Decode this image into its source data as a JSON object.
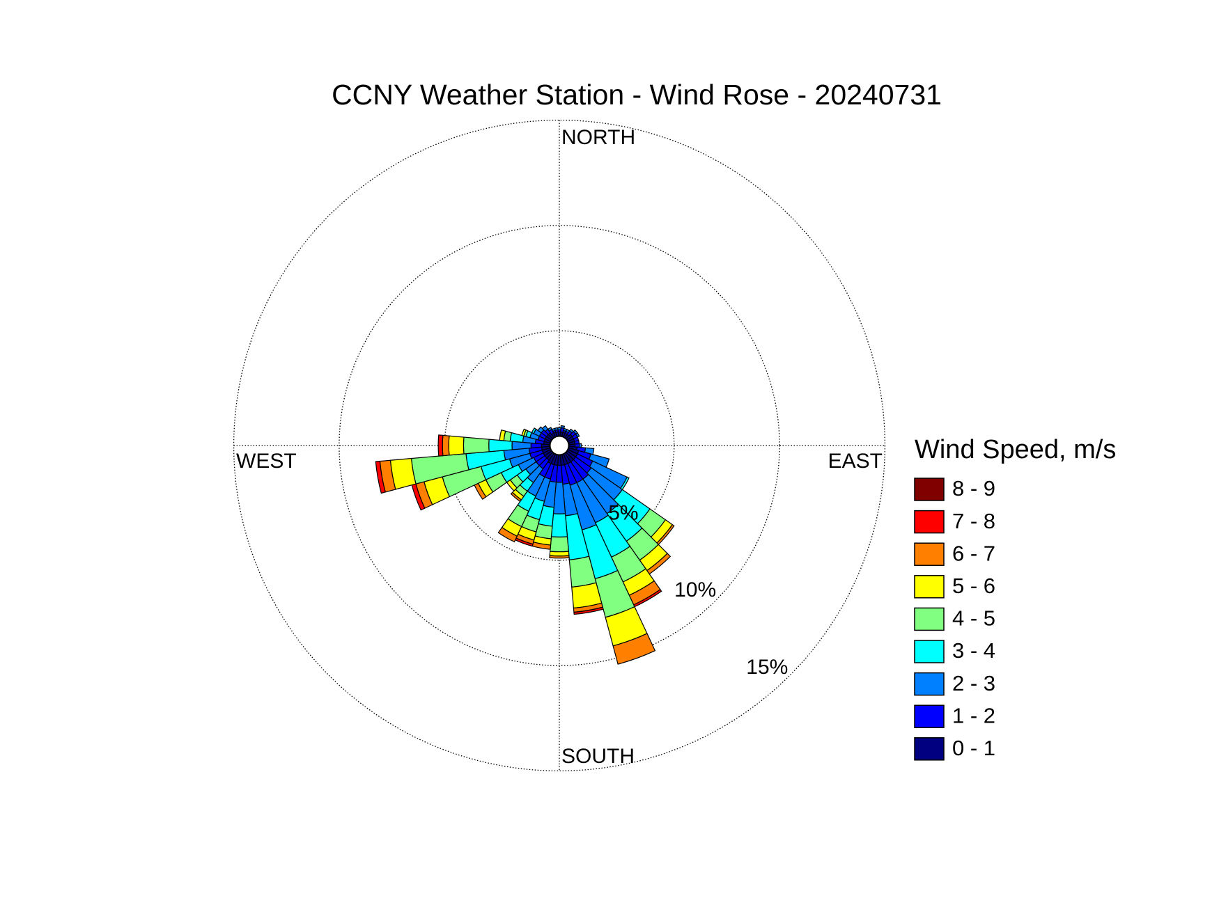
{
  "chart_data": {
    "type": "windrose",
    "title": "CCNY Weather Station - Wind Rose - 20240731",
    "direction_labels": {
      "north": "NORTH",
      "east": "EAST",
      "south": "SOUTH",
      "west": "WEST"
    },
    "legend_title": "Wind Speed, m/s",
    "x": [
      0,
      10,
      20,
      30,
      40,
      50,
      60,
      70,
      80,
      90,
      100,
      110,
      120,
      130,
      140,
      150,
      160,
      170,
      180,
      190,
      200,
      210,
      220,
      230,
      240,
      250,
      260,
      270,
      280,
      290,
      300,
      310,
      320,
      330,
      340,
      350
    ],
    "ylim": [
      0,
      15
    ],
    "yticks": [
      {
        "value": 5,
        "label": "5%"
      },
      {
        "value": 10,
        "label": "10%"
      },
      {
        "value": 15,
        "label": "15%"
      }
    ],
    "grid": true,
    "series": [
      {
        "name": "0 - 1",
        "color": "#000080",
        "values": [
          0.2,
          0.2,
          0.2,
          0.2,
          0.2,
          0.3,
          0.3,
          0.3,
          0.3,
          0.3,
          0.4,
          0.5,
          0.5,
          0.5,
          0.5,
          0.5,
          0.5,
          0.5,
          0.5,
          0.5,
          0.5,
          0.5,
          0.4,
          0.4,
          0.4,
          0.4,
          0.4,
          0.4,
          0.3,
          0.3,
          0.3,
          0.3,
          0.3,
          0.2,
          0.2,
          0.2
        ]
      },
      {
        "name": "1 - 2",
        "color": "#0000ff",
        "values": [
          0.1,
          0.2,
          0.1,
          0.1,
          0.2,
          0.2,
          0.2,
          0.2,
          0.2,
          0.2,
          0.4,
          0.6,
          0.8,
          0.9,
          1.0,
          1.0,
          1.0,
          0.9,
          0.8,
          0.8,
          0.7,
          0.7,
          0.5,
          0.5,
          0.5,
          0.6,
          0.6,
          0.5,
          0.4,
          0.3,
          0.3,
          0.3,
          0.2,
          0.2,
          0.1,
          0.1
        ]
      },
      {
        "name": "2 - 3",
        "color": "#0080ff",
        "values": [
          0.1,
          0.1,
          0.1,
          0.1,
          0.1,
          0.1,
          0.1,
          0,
          0,
          0.1,
          0.4,
          0.9,
          1.8,
          1.8,
          2.0,
          2.1,
          2.2,
          1.5,
          1.5,
          1.2,
          1.1,
          1.0,
          0.8,
          0.6,
          0.8,
          1.0,
          1.2,
          0.9,
          0.6,
          0.4,
          0.3,
          0.2,
          0.2,
          0.1,
          0.1,
          0.1
        ]
      },
      {
        "name": "3 - 4",
        "color": "#00ffff",
        "values": [
          0,
          0,
          0,
          0,
          0,
          0,
          0,
          0,
          0,
          0,
          0,
          0,
          0.1,
          1.6,
          1.6,
          1.8,
          2.4,
          2.1,
          1.1,
          0.9,
          0.9,
          0.8,
          0.5,
          0.5,
          0.9,
          1.4,
          1.8,
          1.1,
          0.6,
          0.2,
          0.1,
          0,
          0,
          0,
          0,
          0
        ]
      },
      {
        "name": "4 - 5",
        "color": "#80ff80",
        "values": [
          0,
          0,
          0,
          0,
          0,
          0,
          0,
          0,
          0,
          0,
          0,
          0,
          0,
          0.9,
          1.1,
          1.3,
          1.9,
          1.3,
          0.7,
          0.6,
          0.6,
          0.8,
          0.3,
          0.4,
          0.8,
          1.9,
          2.6,
          1.2,
          0.3,
          0.1,
          0,
          0,
          0,
          0,
          0,
          0
        ]
      },
      {
        "name": "5 - 6",
        "color": "#ffff00",
        "values": [
          0,
          0,
          0,
          0,
          0,
          0,
          0,
          0,
          0,
          0,
          0,
          0,
          0,
          0.4,
          0.6,
          0.7,
          1.4,
          1.0,
          0.2,
          0.3,
          0.4,
          0.5,
          0.2,
          0.2,
          0.4,
          0.9,
          1.0,
          0.7,
          0.2,
          0.1,
          0,
          0,
          0,
          0,
          0,
          0
        ]
      },
      {
        "name": "6 - 7",
        "color": "#ff8000",
        "values": [
          0,
          0,
          0,
          0,
          0,
          0,
          0,
          0,
          0,
          0,
          0,
          0,
          0,
          0.1,
          0.2,
          0.5,
          0.9,
          0.2,
          0.1,
          0.2,
          0.2,
          0.3,
          0.1,
          0,
          0.2,
          0.4,
          0.5,
          0.3,
          0,
          0,
          0,
          0,
          0,
          0,
          0,
          0
        ]
      },
      {
        "name": "7 - 8",
        "color": "#ff0000",
        "values": [
          0,
          0,
          0,
          0,
          0,
          0,
          0,
          0,
          0,
          0,
          0,
          0,
          0,
          0,
          0,
          0.1,
          0,
          0.1,
          0,
          0,
          0.1,
          0,
          0,
          0,
          0,
          0.2,
          0.2,
          0.2,
          0,
          0,
          0,
          0,
          0,
          0,
          0,
          0
        ]
      },
      {
        "name": "8 - 9",
        "color": "#800000",
        "values": [
          0,
          0,
          0,
          0,
          0,
          0,
          0,
          0,
          0,
          0,
          0,
          0,
          0,
          0,
          0,
          0,
          0,
          0,
          0,
          0,
          0,
          0,
          0,
          0,
          0,
          0,
          0,
          0,
          0,
          0,
          0,
          0,
          0,
          0,
          0,
          0
        ]
      }
    ]
  }
}
